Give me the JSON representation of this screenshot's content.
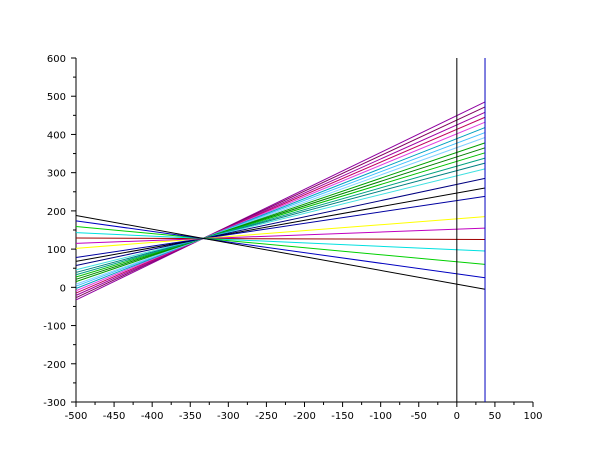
{
  "chart_data": {
    "type": "line",
    "x": [
      -500,
      37
    ],
    "xlim": [
      -500,
      100
    ],
    "xticks": [
      -500,
      -450,
      -400,
      -350,
      -300,
      -250,
      -200,
      -150,
      -100,
      -50,
      0,
      50,
      100
    ],
    "ylim": [
      -300,
      600
    ],
    "yticks": [
      -300,
      -200,
      -100,
      0,
      100,
      200,
      300,
      400,
      500,
      600
    ],
    "series": [
      {
        "color": "#9000a0",
        "values": [
          -33,
          485
        ]
      },
      {
        "color": "#800060",
        "values": [
          -27,
          472
        ]
      },
      {
        "color": "#a000a0",
        "values": [
          -21,
          458
        ]
      },
      {
        "color": "#c00060",
        "values": [
          -15,
          445
        ]
      },
      {
        "color": "#e040e0",
        "values": [
          -9,
          432
        ]
      },
      {
        "color": "#00a0c0",
        "values": [
          -3,
          418
        ]
      },
      {
        "color": "#40c0ff",
        "values": [
          3,
          405
        ]
      },
      {
        "color": "#80d0ff",
        "values": [
          8,
          392
        ]
      },
      {
        "color": "#00a000",
        "values": [
          15,
          378
        ]
      },
      {
        "color": "#008000",
        "values": [
          21,
          365
        ]
      },
      {
        "color": "#00c000",
        "values": [
          27,
          352
        ]
      },
      {
        "color": "#00a080",
        "values": [
          33,
          338
        ]
      },
      {
        "color": "#008080",
        "values": [
          39,
          325
        ]
      },
      {
        "color": "#40e0e0",
        "values": [
          46,
          310
        ]
      },
      {
        "color": "#000080",
        "values": [
          57,
          285
        ]
      },
      {
        "color": "#000000",
        "values": [
          68,
          260
        ]
      },
      {
        "color": "#0000a0",
        "values": [
          78,
          238
        ]
      },
      {
        "color": "#ffff00",
        "values": [
          102,
          185
        ]
      },
      {
        "color": "#c000c0",
        "values": [
          115,
          155
        ]
      },
      {
        "color": "#a00000",
        "values": [
          129,
          125
        ]
      },
      {
        "color": "#00e0e0",
        "values": [
          143,
          95
        ]
      },
      {
        "color": "#00d000",
        "values": [
          159,
          60
        ]
      },
      {
        "color": "#0000c0",
        "values": [
          174,
          25
        ]
      },
      {
        "color": "#000000",
        "values": [
          188,
          -5
        ]
      }
    ],
    "vlines": [
      {
        "x": 0,
        "color": "#000000"
      },
      {
        "x": 37,
        "color": "#0000c0"
      }
    ]
  }
}
